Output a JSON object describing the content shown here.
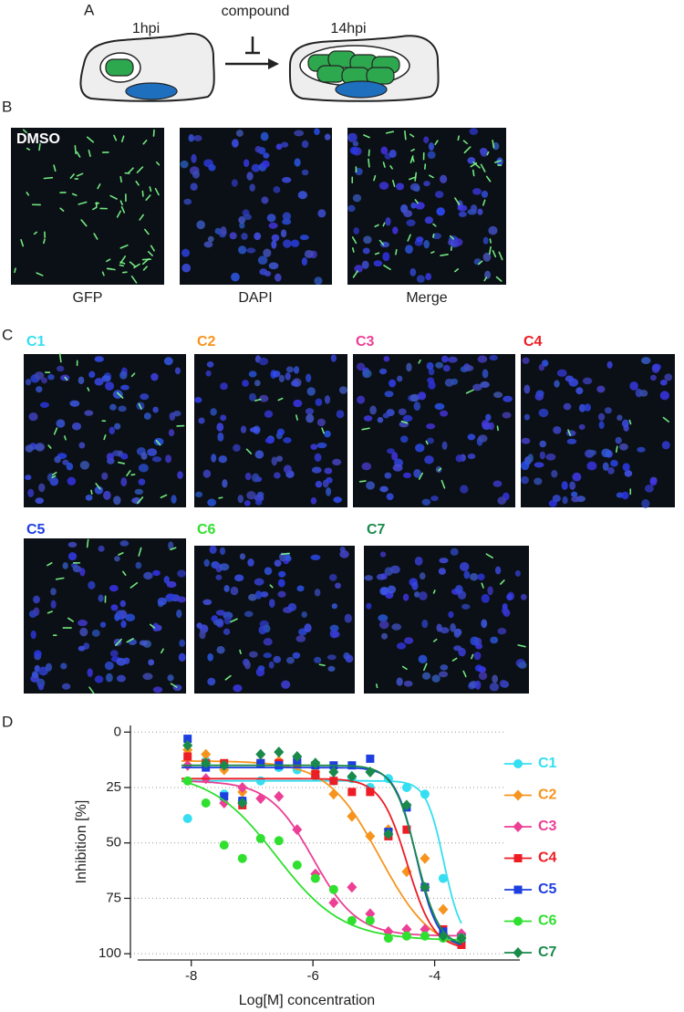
{
  "panels": {
    "a": {
      "label": "A",
      "time_early": "1hpi",
      "compound": "compound",
      "time_late": "14hpi"
    },
    "b": {
      "label": "B",
      "control": "DMSO",
      "channels": [
        "GFP",
        "DAPI",
        "Merge"
      ]
    },
    "c": {
      "label": "C",
      "compounds": [
        {
          "name": "C1",
          "color": "#33dff0"
        },
        {
          "name": "C2",
          "color": "#f7941d"
        },
        {
          "name": "C3",
          "color": "#ec3f95"
        },
        {
          "name": "C4",
          "color": "#ee1c24"
        },
        {
          "name": "C5",
          "color": "#1d3fe0"
        },
        {
          "name": "C6",
          "color": "#2fe02f"
        },
        {
          "name": "C7",
          "color": "#1a8a4a"
        }
      ]
    },
    "d": {
      "label": "D"
    }
  },
  "chart_data": {
    "type": "scatter",
    "x_label": "Log[M] concentration",
    "y_label": "Inhibition [%]",
    "x": [
      -8.06,
      -7.76,
      -7.46,
      -7.16,
      -6.86,
      -6.56,
      -6.26,
      -5.96,
      -5.66,
      -5.36,
      -5.06,
      -4.76,
      -4.46,
      -4.16,
      -3.86,
      -3.56
    ],
    "xlim": [
      -9,
      -2.6
    ],
    "xticks": [
      -8,
      -6,
      -4
    ],
    "ylim": [
      -3,
      102
    ],
    "yticks": [
      0,
      25,
      50,
      75,
      100
    ],
    "y_inverted": true,
    "grid": true,
    "series": [
      {
        "name": "C1",
        "color": "#33dff0",
        "marker": "circle",
        "values": [
          39,
          13,
          28,
          31,
          22,
          16,
          17,
          20,
          22,
          21,
          25,
          21,
          25,
          28,
          66,
          92
        ],
        "fit": {
          "bottom": 22,
          "top": 95,
          "log_ic50": -3.85,
          "hill": 3
        }
      },
      {
        "name": "C2",
        "color": "#f7941d",
        "marker": "diamond",
        "values": [
          8,
          10,
          17,
          27,
          14,
          13,
          15,
          18,
          28,
          38,
          47,
          44,
          63,
          57,
          80,
          92
        ],
        "fit": {
          "bottom": 13,
          "top": 100,
          "log_ic50": -4.9,
          "hill": 1
        }
      },
      {
        "name": "C3",
        "color": "#ec3f95",
        "marker": "diamond",
        "values": [
          15,
          21,
          32,
          25,
          30,
          29,
          44,
          64,
          77,
          70,
          82,
          90,
          89,
          89,
          91,
          91
        ],
        "fit": {
          "bottom": 22,
          "top": 92,
          "log_ic50": -6.0,
          "hill": 1.2
        }
      },
      {
        "name": "C4",
        "color": "#ee1c24",
        "marker": "square",
        "values": [
          11,
          14,
          14,
          33,
          14,
          14,
          14,
          19,
          22,
          27,
          27,
          47,
          44,
          70,
          89,
          96
        ],
        "fit": {
          "bottom": 21,
          "top": 98,
          "log_ic50": -4.45,
          "hill": 2
        }
      },
      {
        "name": "C5",
        "color": "#1d3fe0",
        "marker": "square",
        "values": [
          3,
          16,
          29,
          31,
          14,
          15,
          13,
          15,
          15,
          15,
          12,
          45,
          34,
          70,
          90,
          93
        ],
        "fit": {
          "bottom": 16,
          "top": 97,
          "log_ic50": -4.3,
          "hill": 2.5
        }
      },
      {
        "name": "C6",
        "color": "#2fe02f",
        "marker": "circle",
        "values": [
          22,
          32,
          51,
          57,
          48,
          49,
          60,
          66,
          71,
          85,
          85,
          93,
          92,
          92,
          93,
          93
        ],
        "fit": {
          "bottom": 18,
          "top": 94,
          "log_ic50": -6.6,
          "hill": 0.8
        }
      },
      {
        "name": "C7",
        "color": "#1a8a4a",
        "marker": "diamond",
        "values": [
          6,
          14,
          15,
          32,
          10,
          9,
          11,
          14,
          18,
          20,
          18,
          46,
          33,
          70,
          92,
          93
        ],
        "fit": {
          "bottom": 15,
          "top": 97,
          "log_ic50": -4.3,
          "hill": 2.3
        }
      }
    ]
  }
}
